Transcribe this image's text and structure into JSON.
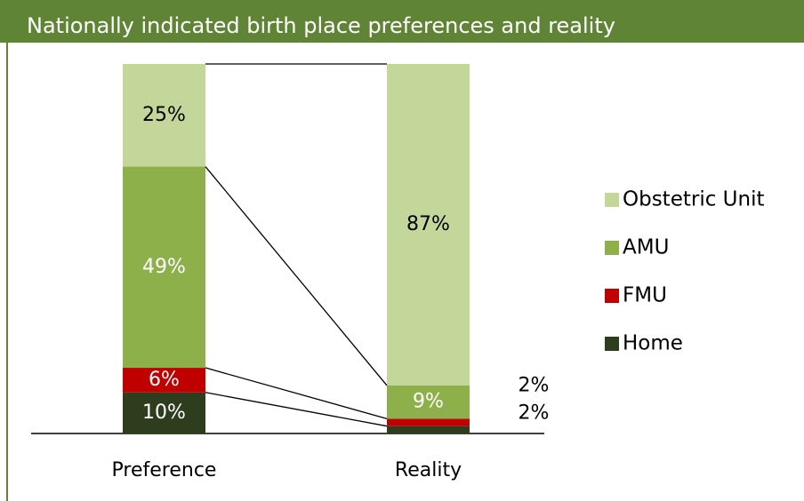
{
  "chart_data": {
    "type": "bar",
    "stacked": true,
    "normalized": true,
    "title": "Nationally indicated birth place preferences and reality",
    "categories": [
      "Preference",
      "Reality"
    ],
    "series": [
      {
        "name": "Home",
        "color": "#2f3d1f",
        "values": [
          10,
          2
        ],
        "value_labels": [
          "10%",
          "2%"
        ]
      },
      {
        "name": "FMU",
        "color": "#c00000",
        "values": [
          6,
          2
        ],
        "value_labels": [
          "6%",
          "2%"
        ]
      },
      {
        "name": "AMU",
        "color": "#8db04a",
        "values": [
          49,
          9
        ],
        "value_labels": [
          "49%",
          "9%"
        ]
      },
      {
        "name": "Obstetric Unit",
        "color": "#c4d79b",
        "values": [
          25,
          87
        ],
        "value_labels": [
          "25%",
          "87%"
        ]
      }
    ],
    "legend": "right"
  }
}
